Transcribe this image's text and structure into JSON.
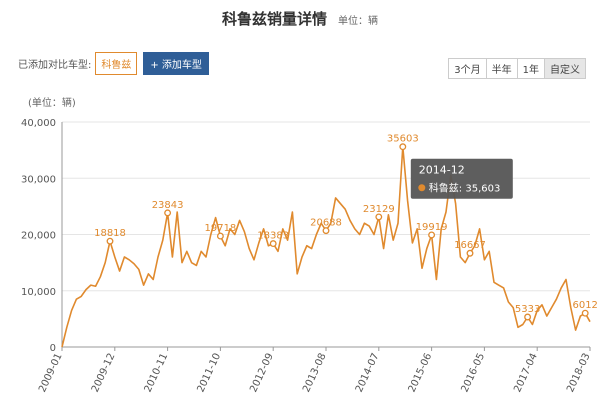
{
  "header": {
    "title": "科鲁兹销量详情",
    "unit": "单位：辆"
  },
  "compare": {
    "label": "已添加对比车型:",
    "model": "科鲁兹",
    "add_button": "+ 添加车型"
  },
  "ranges": [
    "3个月",
    "半年",
    "1年",
    "自定义"
  ],
  "active_range": "自定义",
  "colors": {
    "line": "#e08a2e",
    "grid": "#e5e5e5",
    "tooltip_bg": "#555555"
  },
  "chart_data": {
    "type": "line",
    "yunit_label": "(单位：辆)",
    "ylim": [
      0,
      40000
    ],
    "yticks": [
      "0",
      "10,000",
      "20,000",
      "30,000",
      "40,000"
    ],
    "ytick_values": [
      0,
      10000,
      20000,
      30000,
      40000
    ],
    "xtick_labels": [
      "2009-01",
      "2009-12",
      "2010-11",
      "2011-10",
      "2012-09",
      "2013-08",
      "2014-07",
      "2015-06",
      "2016-05",
      "2017-04",
      "2018-03"
    ],
    "xtick_index": [
      0,
      11,
      22,
      33,
      44,
      55,
      66,
      77,
      88,
      99,
      110
    ],
    "grid": true,
    "series": [
      {
        "name": "科鲁兹",
        "values": [
          0,
          3500,
          6500,
          8500,
          9000,
          10200,
          11000,
          10800,
          12500,
          15000,
          18818,
          16000,
          13500,
          16000,
          15500,
          14800,
          13800,
          11000,
          13000,
          12000,
          16000,
          19000,
          23843,
          16000,
          24000,
          15000,
          17000,
          15000,
          14500,
          17000,
          16000,
          20000,
          23000,
          19718,
          18000,
          21000,
          20000,
          22500,
          20500,
          17500,
          15500,
          18500,
          21000,
          18000,
          18383,
          17000,
          21000,
          19000,
          24000,
          13000,
          16000,
          18000,
          17500,
          20000,
          22000,
          20688,
          22000,
          26500,
          25500,
          24500,
          22500,
          21000,
          20000,
          22000,
          21500,
          20000,
          23129,
          17500,
          23500,
          19000,
          22000,
          35603,
          26000,
          18500,
          21000,
          14000,
          17500,
          19919,
          12000,
          21000,
          24000,
          30500,
          25500,
          16000,
          15000,
          16667,
          18000,
          21000,
          15500,
          17000,
          11500,
          11000,
          10500,
          8000,
          7000,
          3500,
          4000,
          5333,
          4000,
          6500,
          7500,
          5500,
          7000,
          8500,
          10500,
          12000,
          7000,
          3000,
          5500,
          6012,
          4500
        ],
        "point_labels": [
          {
            "index": 10,
            "text": "18818"
          },
          {
            "index": 22,
            "text": "23843"
          },
          {
            "index": 33,
            "text": "19718"
          },
          {
            "index": 44,
            "text": "18383"
          },
          {
            "index": 55,
            "text": "20688"
          },
          {
            "index": 66,
            "text": "23129"
          },
          {
            "index": 71,
            "text": "35603"
          },
          {
            "index": 77,
            "text": "19919"
          },
          {
            "index": 85,
            "text": "16667"
          },
          {
            "index": 97,
            "text": "5333"
          },
          {
            "index": 109,
            "text": "6012"
          }
        ]
      }
    ],
    "tooltip": {
      "index": 71,
      "date": "2014-12",
      "series": "科鲁兹",
      "value_text": "35,603"
    }
  }
}
